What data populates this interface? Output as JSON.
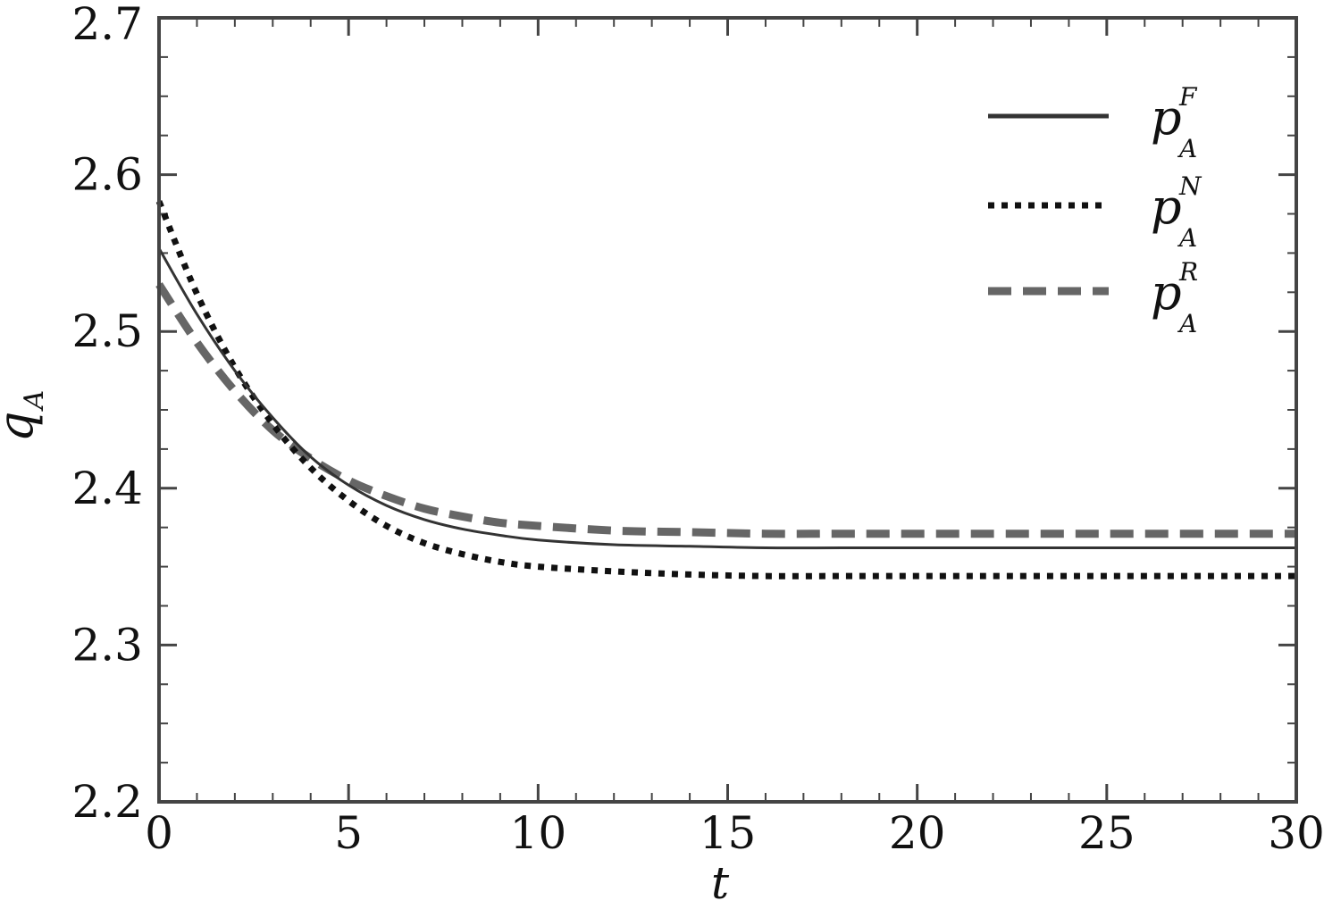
{
  "chart_data": {
    "type": "line",
    "xlabel": "t",
    "ylabel": {
      "base": "q",
      "sub": "A"
    },
    "xlim": [
      0,
      30
    ],
    "ylim": [
      2.2,
      2.7
    ],
    "xticks": [
      0,
      5,
      10,
      15,
      20,
      25,
      30
    ],
    "yticks": [
      2.2,
      2.3,
      2.4,
      2.5,
      2.6,
      2.7
    ],
    "xtick_labels": [
      "0",
      "5",
      "10",
      "15",
      "20",
      "25",
      "30"
    ],
    "ytick_labels": [
      "2.2",
      "2.3",
      "2.4",
      "2.5",
      "2.6",
      "2.7"
    ],
    "grid": false,
    "legend_position": "top-right",
    "series": [
      {
        "name": "p_A^F",
        "legend": {
          "base": "p",
          "sup": "F",
          "sub": "A"
        },
        "style": "solid",
        "color": "#333333",
        "x": [
          0,
          1,
          2,
          3,
          4,
          5,
          6,
          7,
          8,
          9,
          10,
          12,
          14,
          16,
          18,
          20,
          25,
          30
        ],
        "y": [
          2.553,
          2.511,
          2.475,
          2.445,
          2.42,
          2.402,
          2.389,
          2.38,
          2.374,
          2.37,
          2.367,
          2.364,
          2.363,
          2.362,
          2.362,
          2.362,
          2.362,
          2.362
        ]
      },
      {
        "name": "p_A^N",
        "legend": {
          "base": "p",
          "sup": "N",
          "sub": "A"
        },
        "style": "dotted",
        "color": "#111111",
        "x": [
          0,
          1,
          2,
          3,
          4,
          5,
          6,
          7,
          8,
          9,
          10,
          12,
          14,
          16,
          18,
          20,
          25,
          30
        ],
        "y": [
          2.583,
          2.524,
          2.477,
          2.441,
          2.413,
          2.392,
          2.376,
          2.365,
          2.358,
          2.353,
          2.35,
          2.347,
          2.345,
          2.344,
          2.344,
          2.344,
          2.344,
          2.344
        ]
      },
      {
        "name": "p_A^R",
        "legend": {
          "base": "p",
          "sup": "R",
          "sub": "A"
        },
        "style": "dashed",
        "color": "#666666",
        "x": [
          0,
          1,
          2,
          3,
          4,
          5,
          6,
          7,
          8,
          9,
          10,
          12,
          14,
          16,
          18,
          20,
          25,
          30
        ],
        "y": [
          2.53,
          2.493,
          2.462,
          2.437,
          2.419,
          2.405,
          2.395,
          2.387,
          2.382,
          2.378,
          2.376,
          2.373,
          2.372,
          2.371,
          2.371,
          2.371,
          2.371,
          2.371
        ]
      }
    ]
  }
}
